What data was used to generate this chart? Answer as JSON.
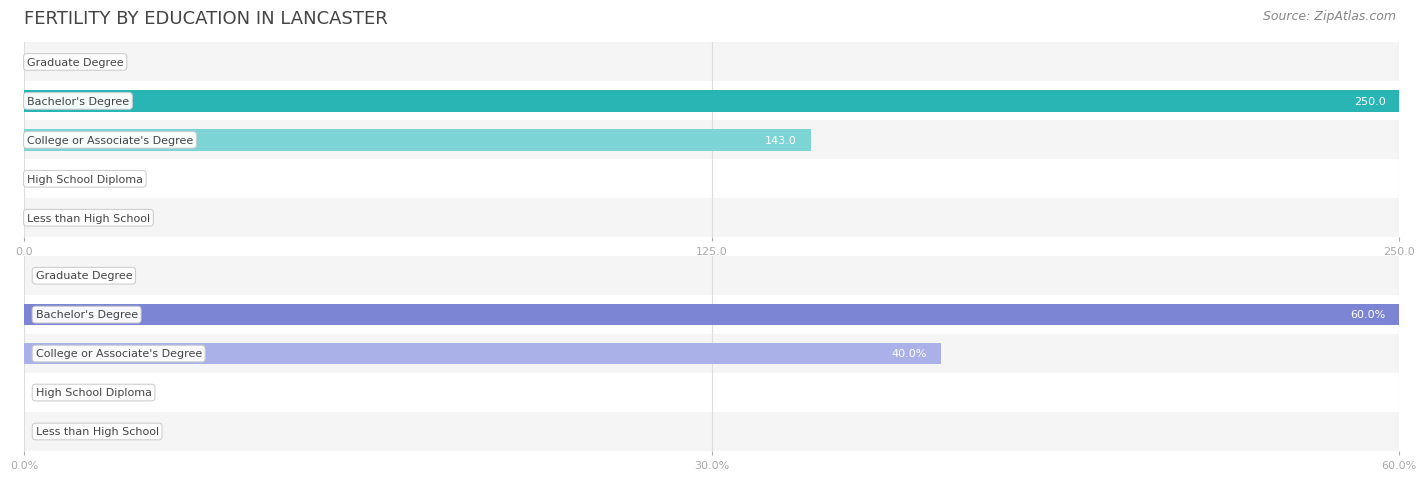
{
  "title": "FERTILITY BY EDUCATION IN LANCASTER",
  "source": "Source: ZipAtlas.com",
  "categories": [
    "Less than High School",
    "High School Diploma",
    "College or Associate's Degree",
    "Bachelor's Degree",
    "Graduate Degree"
  ],
  "chart1": {
    "values": [
      0.0,
      0.0,
      143.0,
      250.0,
      0.0
    ],
    "xlim": [
      0,
      250
    ],
    "xticks": [
      0.0,
      125.0,
      250.0
    ],
    "xtick_labels": [
      "0.0",
      "125.0",
      "250.0"
    ],
    "bar_color_normal": "#7dd4d4",
    "bar_color_max": "#2ab5b5",
    "label_inside_color": "#ffffff",
    "label_outside_color": "#888888",
    "bg_row_colors": [
      "#f5f5f5",
      "#ffffff"
    ]
  },
  "chart2": {
    "values": [
      0.0,
      0.0,
      40.0,
      60.0,
      0.0
    ],
    "xlim": [
      0,
      60
    ],
    "xticks": [
      0.0,
      30.0,
      60.0
    ],
    "xtick_labels": [
      "0.0%",
      "30.0%",
      "60.0%"
    ],
    "bar_color_normal": "#aab0e8",
    "bar_color_max": "#7b85d4",
    "label_inside_color": "#ffffff",
    "label_outside_color": "#888888",
    "bg_row_colors": [
      "#f5f5f5",
      "#ffffff"
    ]
  },
  "title_fontsize": 13,
  "source_fontsize": 9,
  "label_fontsize": 8,
  "tick_fontsize": 8,
  "category_fontsize": 8,
  "bar_height": 0.55,
  "title_color": "#444444",
  "source_color": "#888888",
  "tick_color": "#aaaaaa",
  "grid_color": "#dddddd",
  "category_text_color": "#444444",
  "label_box_facecolor": "#ffffff",
  "label_box_edgecolor": "#cccccc"
}
